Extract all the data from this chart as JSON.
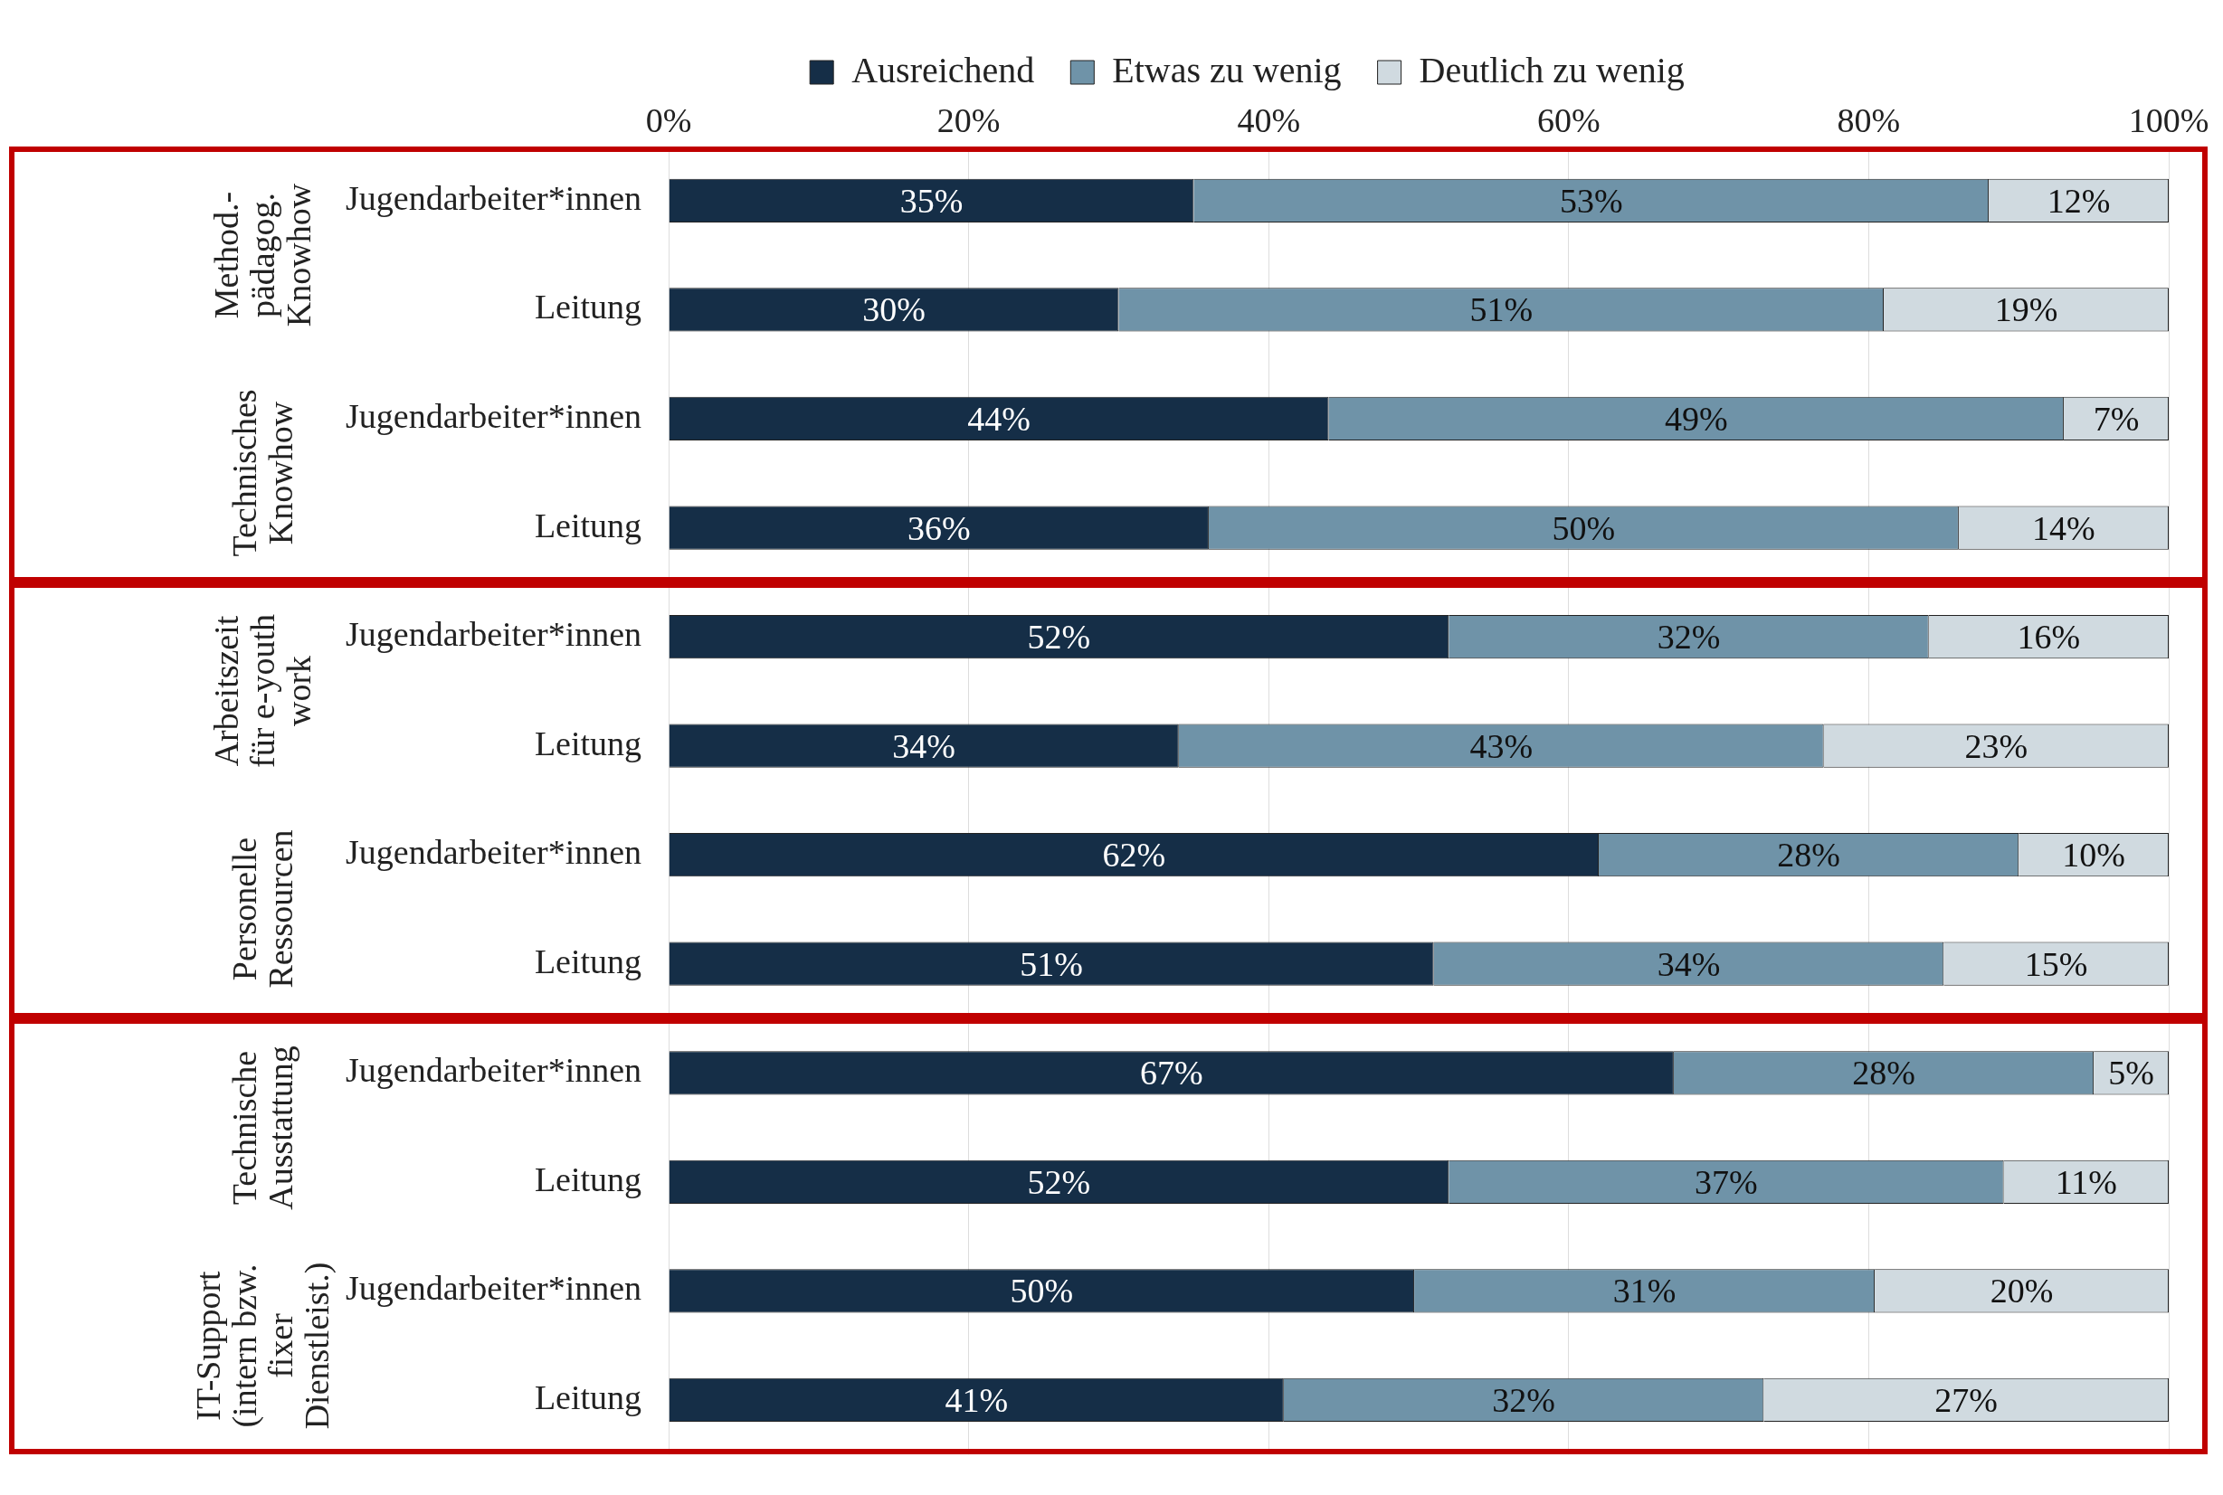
{
  "chart_data": {
    "type": "bar",
    "orientation": "horizontal",
    "stacked": true,
    "legend": "top",
    "grid": "x",
    "categories": [
      "Jugendarbeiter*innen",
      "Leitung",
      "Jugendarbeiter*innen",
      "Leitung",
      "Jugendarbeiter*innen",
      "Leitung",
      "Jugendarbeiter*innen",
      "Leitung",
      "Jugendarbeiter*innen",
      "Leitung",
      "Jugendarbeiter*innen",
      "Leitung"
    ],
    "xlim": [
      0,
      100
    ],
    "xticks": [
      {
        "value": 0,
        "label": "0%"
      },
      {
        "value": 20,
        "label": "20%"
      },
      {
        "value": 40,
        "label": "40%"
      },
      {
        "value": 60,
        "label": "60%"
      },
      {
        "value": 80,
        "label": "80%"
      },
      {
        "value": 100,
        "label": "100%"
      }
    ],
    "series": [
      {
        "name": "Ausreichend",
        "color": "#152e47",
        "values": [
          35,
          30,
          44,
          36,
          52,
          34,
          62,
          51,
          67,
          52,
          49.7,
          41
        ],
        "value_labels": [
          "35%",
          "30%",
          "44%",
          "36%",
          "52%",
          "34%",
          "62%",
          "51%",
          "67%",
          "52%",
          "50%",
          "41%"
        ]
      },
      {
        "name": "Etwas zu wenig",
        "color": "#6f93a8",
        "values": [
          53,
          51,
          49,
          50,
          32,
          43,
          28,
          34,
          28,
          37,
          30.7,
          32
        ],
        "value_labels": [
          "53%",
          "51%",
          "49%",
          "50%",
          "32%",
          "43%",
          "28%",
          "34%",
          "28%",
          "37%",
          "31%",
          "32%"
        ]
      },
      {
        "name": "Deutlich zu wenig",
        "color": "#d0dae0",
        "values": [
          12,
          19,
          7,
          14,
          16,
          23,
          10,
          15,
          5,
          11,
          19.6,
          27
        ],
        "value_labels": [
          "12%",
          "19%",
          "7%",
          "14%",
          "16%",
          "23%",
          "10%",
          "15%",
          "5%",
          "11%",
          "20%",
          "27%"
        ]
      }
    ],
    "annotations": [
      "Method.-\npädagog.\nKnowhow",
      "Technisches\nKnowhow",
      "Arbeitszeit\nfür e-youth\nwork",
      "Personelle\nRessourcen",
      "Technische\nAusstattung",
      "IT-Support\n(intern bzw.\nfixer\nDienstleist.)"
    ]
  }
}
